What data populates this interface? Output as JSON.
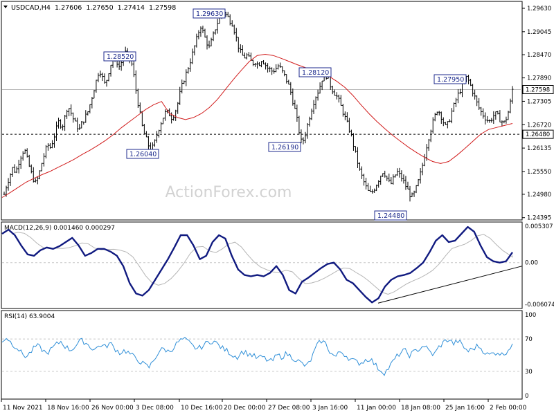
{
  "header": {
    "symbol": "USDCAD,H4",
    "open": "1.27606",
    "high": "1.27650",
    "low": "1.27414",
    "close": "1.27598"
  },
  "watermark": "ActionForex.com",
  "chart_data": [
    {
      "type": "candlestick",
      "title": "USDCAD,H4 1.27606 1.27650 1.27414 1.27598",
      "ylim": [
        1.2439,
        1.2963
      ],
      "y_ticks": [
        "1.29630",
        "1.29045",
        "1.28470",
        "1.27890",
        "1.27305",
        "1.26720",
        "1.26135",
        "1.25550",
        "1.24980",
        "1.24395"
      ],
      "current_price": "1.27598",
      "support_level": "1.26480",
      "x_ticks": [
        "11 Nov 2021",
        "18 Nov 16:00",
        "26 Nov 00:00",
        "3 Dec 08:00",
        "10 Dec 16:00",
        "20 Dec 00:00",
        "27 Dec 08:00",
        "3 Jan 16:00",
        "11 Jan 00:00",
        "18 Jan 08:00",
        "25 Jan 16:00",
        "2 Feb 00:00"
      ],
      "labeled_swings": [
        {
          "label": "1.28520",
          "type": "high"
        },
        {
          "label": "1.26040",
          "type": "low"
        },
        {
          "label": "1.29630",
          "type": "high"
        },
        {
          "label": "1.26190",
          "type": "low"
        },
        {
          "label": "1.28120",
          "type": "high"
        },
        {
          "label": "1.24480",
          "type": "low"
        },
        {
          "label": "1.27950",
          "type": "high"
        }
      ],
      "price_path": [
        1.2498,
        1.2525,
        1.2545,
        1.2565,
        1.2552,
        1.2578,
        1.2598,
        1.2612,
        1.2585,
        1.256,
        1.2538,
        1.2525,
        1.2545,
        1.2575,
        1.26,
        1.2622,
        1.2615,
        1.2635,
        1.266,
        1.2682,
        1.2665,
        1.269,
        1.272,
        1.2705,
        1.2685,
        1.267,
        1.266,
        1.2678,
        1.269,
        1.2705,
        1.273,
        1.2758,
        1.2785,
        1.2812,
        1.279,
        1.277,
        1.28,
        1.2825,
        1.284,
        1.283,
        1.2815,
        1.2838,
        1.2852,
        1.2845,
        1.283,
        1.279,
        1.274,
        1.27,
        1.266,
        1.264,
        1.262,
        1.2608,
        1.2625,
        1.265,
        1.2672,
        1.269,
        1.2705,
        1.27,
        1.269,
        1.27,
        1.2722,
        1.2755,
        1.278,
        1.28,
        1.282,
        1.2845,
        1.287,
        1.2895,
        1.292,
        1.29,
        1.288,
        1.2865,
        1.2885,
        1.291,
        1.293,
        1.2948,
        1.2955,
        1.2945,
        1.2935,
        1.2925,
        1.29,
        1.287,
        1.285,
        1.284,
        1.2845,
        1.2835,
        1.2825,
        1.283,
        1.282,
        1.2835,
        1.2828,
        1.2815,
        1.281,
        1.2805,
        1.2812,
        1.282,
        1.2808,
        1.2795,
        1.278,
        1.276,
        1.273,
        1.27,
        1.266,
        1.2625,
        1.264,
        1.267,
        1.27,
        1.2725,
        1.2745,
        1.276,
        1.2785,
        1.28,
        1.279,
        1.277,
        1.2755,
        1.2745,
        1.273,
        1.271,
        1.269,
        1.267,
        1.265,
        1.262,
        1.259,
        1.256,
        1.254,
        1.252,
        1.2505,
        1.25,
        1.251,
        1.2525,
        1.254,
        1.2555,
        1.2548,
        1.253,
        1.2525,
        1.254,
        1.2555,
        1.2545,
        1.2535,
        1.252,
        1.2505,
        1.249,
        1.25,
        1.252,
        1.2545,
        1.2575,
        1.261,
        1.264,
        1.2668,
        1.269,
        1.271,
        1.27,
        1.268,
        1.2665,
        1.268,
        1.2705,
        1.2725,
        1.2745,
        1.276,
        1.2775,
        1.279,
        1.278,
        1.276,
        1.274,
        1.272,
        1.2705,
        1.2695,
        1.2685,
        1.268,
        1.269,
        1.27,
        1.2692,
        1.2682,
        1.2676,
        1.269,
        1.2715,
        1.276
      ],
      "moving_average": [
        1.249,
        1.2502,
        1.2515,
        1.2528,
        1.2538,
        1.2547,
        1.2555,
        1.2565,
        1.2575,
        1.2585,
        1.2597,
        1.2608,
        1.262,
        1.2633,
        1.2648,
        1.2665,
        1.268,
        1.2695,
        1.271,
        1.2722,
        1.273,
        1.27,
        1.269,
        1.2685,
        1.269,
        1.27,
        1.2715,
        1.2735,
        1.276,
        1.2785,
        1.2808,
        1.283,
        1.2845,
        1.2848,
        1.2845,
        1.2838,
        1.283,
        1.2822,
        1.2815,
        1.2808,
        1.28,
        1.2793,
        1.278,
        1.2765,
        1.2745,
        1.2722,
        1.27,
        1.268,
        1.2662,
        1.2645,
        1.263,
        1.2615,
        1.2602,
        1.259,
        1.258,
        1.2575,
        1.258,
        1.2595,
        1.2612,
        1.263,
        1.2648,
        1.266,
        1.2665,
        1.267,
        1.2675
      ]
    },
    {
      "type": "line",
      "title": "MACD(12,26,9) 0.001460 0.000297",
      "series": [
        {
          "name": "MACD"
        },
        {
          "name": "Signal"
        }
      ],
      "y_ticks": [
        "0.005307",
        "0.00",
        "-0.006074"
      ],
      "ylim": [
        -0.006074,
        0.005307
      ],
      "macd_path": [
        0.0042,
        0.0048,
        0.004,
        0.0025,
        0.0012,
        0.001,
        0.0018,
        0.0022,
        0.002,
        0.0024,
        0.003,
        0.0036,
        0.0025,
        0.001,
        0.0014,
        0.002,
        0.002,
        0.0016,
        0.001,
        -0.0005,
        -0.003,
        -0.0045,
        -0.0048,
        -0.004,
        -0.0025,
        -0.001,
        0.0005,
        0.0022,
        0.004,
        0.004,
        0.0025,
        0.0005,
        0.001,
        0.003,
        0.004,
        0.0035,
        0.001,
        -0.001,
        -0.0018,
        -0.002,
        -0.0018,
        -0.002,
        -0.0015,
        -0.0005,
        -0.0018,
        -0.004,
        -0.0045,
        -0.0028,
        -0.0022,
        -0.0015,
        -0.0008,
        -0.0002,
        0.0,
        -0.001,
        -0.0025,
        -0.003,
        -0.004,
        -0.005,
        -0.0058,
        -0.0052,
        -0.0035,
        -0.0025,
        -0.002,
        -0.0018,
        -0.0015,
        -0.0008,
        0.0,
        0.0015,
        0.0032,
        0.004,
        0.003,
        0.0032,
        0.0042,
        0.0052,
        0.0045,
        0.0025,
        0.0008,
        0.0002,
        0.0,
        0.0002,
        0.0015
      ],
      "trendline": "rising support from -0.006074 low"
    },
    {
      "type": "line",
      "title": "RSI(14) 63.9004",
      "y_ticks": [
        "100",
        "70",
        "30",
        "0"
      ],
      "levels": [
        70,
        30
      ],
      "current_value": 63.9004,
      "rsi_path": [
        68,
        72,
        64,
        60,
        52,
        48,
        55,
        62,
        58,
        52,
        57,
        63,
        67,
        60,
        56,
        62,
        68,
        66,
        60,
        57,
        63,
        60,
        65,
        58,
        53,
        56,
        52,
        47,
        43,
        38,
        35,
        45,
        55,
        58,
        54,
        60,
        67,
        70,
        66,
        60,
        58,
        62,
        66,
        68,
        63,
        58,
        55,
        50,
        48,
        55,
        52,
        50,
        46,
        48,
        44,
        42,
        50,
        48,
        52,
        48,
        44,
        40,
        36,
        45,
        60,
        68,
        64,
        52,
        48,
        55,
        50,
        45,
        42,
        40,
        44,
        46,
        38,
        32,
        28,
        36,
        45,
        52,
        56,
        50,
        54,
        58,
        62,
        55,
        50,
        60,
        66,
        70,
        64,
        68,
        60,
        55,
        58,
        62,
        56,
        50,
        52,
        54,
        50,
        56,
        64
      ]
    }
  ]
}
